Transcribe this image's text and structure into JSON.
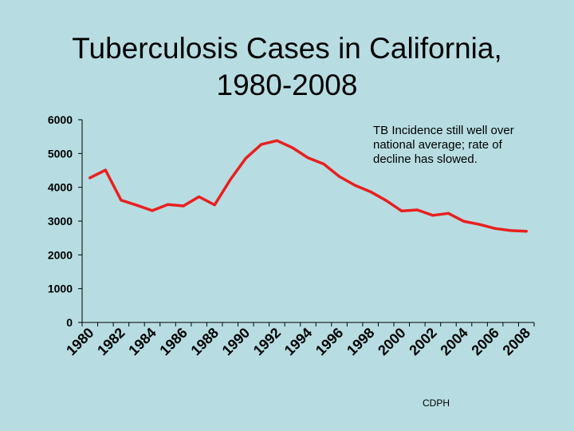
{
  "slide": {
    "title_line1": "Tuberculosis Cases in California,",
    "title_line2": "1980-2008",
    "annotation": "TB Incidence still well over national average; rate of decline has slowed.",
    "footer": "CDPH"
  },
  "colors": {
    "background": "#b7dde2",
    "line": "#e8201f",
    "axis": "#000000"
  },
  "chart_data": {
    "type": "line",
    "title": "Tuberculosis Cases in California, 1980-2008",
    "xlabel": "",
    "ylabel": "",
    "ylim": [
      0,
      6000
    ],
    "yticks": [
      0,
      1000,
      2000,
      3000,
      4000,
      5000,
      6000
    ],
    "xlim": [
      1980,
      2008
    ],
    "x_tick_labels": [
      "1980",
      "1982",
      "1984",
      "1986",
      "1988",
      "1990",
      "1992",
      "1994",
      "1996",
      "1998",
      "2000",
      "2002",
      "2004",
      "2006",
      "2008"
    ],
    "grid": false,
    "legend": "none",
    "series": [
      {
        "x": [
          1980,
          1981,
          1982,
          1983,
          1984,
          1985,
          1986,
          1987,
          1988,
          1989,
          1990,
          1991,
          1992,
          1993,
          1994,
          1995,
          1996,
          1997,
          1998,
          1999,
          2000,
          2001,
          2002,
          2003,
          2004,
          2005,
          2006,
          2007,
          2008
        ],
        "values": [
          4280,
          4510,
          3620,
          3470,
          3310,
          3490,
          3450,
          3720,
          3480,
          4220,
          4860,
          5270,
          5380,
          5170,
          4870,
          4690,
          4320,
          4060,
          3870,
          3610,
          3300,
          3330,
          3170,
          3230,
          2990,
          2900,
          2780,
          2720,
          2700
        ]
      }
    ]
  }
}
